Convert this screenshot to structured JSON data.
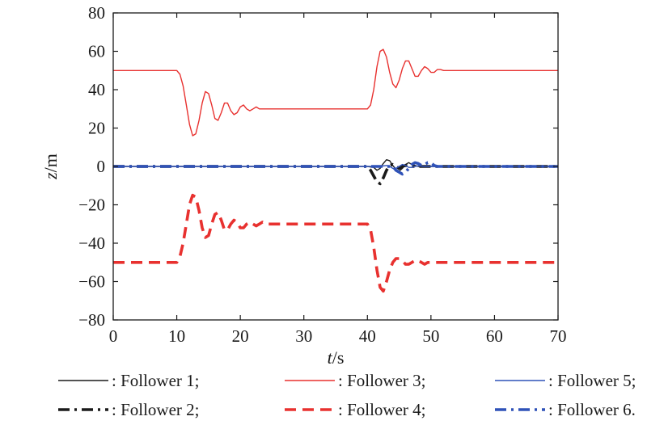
{
  "chart_data": {
    "type": "line",
    "xlabel_italic": "t",
    "xlabel_unit": "/s",
    "ylabel_italic": "z",
    "ylabel_unit": "/m",
    "xlim": [
      0,
      70
    ],
    "ylim": [
      -80,
      80
    ],
    "xticks": [
      "0",
      "10",
      "20",
      "30",
      "40",
      "50",
      "60",
      "70"
    ],
    "yticks": [
      "80",
      "60",
      "40",
      "20",
      "0",
      "−20",
      "−40",
      "−60",
      "−80"
    ],
    "xtick_values": [
      0,
      10,
      20,
      30,
      40,
      50,
      60,
      70
    ],
    "ytick_values": [
      80,
      60,
      40,
      20,
      0,
      -20,
      -40,
      -60,
      -80
    ],
    "grid": false,
    "legend_position": "bottom",
    "series": [
      {
        "name": ": Follower 1;",
        "color": "#1a1a1a",
        "dash": "solid",
        "x": [
          0,
          40,
          41,
          41.5,
          42,
          42.5,
          43,
          43.5,
          44,
          44.5,
          45,
          45.5,
          46,
          46.5,
          47,
          48,
          49,
          70
        ],
        "y": [
          0,
          0,
          -0.5,
          -2,
          -1,
          1.5,
          3.5,
          3,
          0.5,
          -1.5,
          -2.5,
          -1,
          1,
          2,
          1,
          0,
          0,
          0
        ]
      },
      {
        "name": ": Follower 2;",
        "color": "#1a1a1a",
        "dash": "dashdot",
        "x": [
          0,
          40,
          40.5,
          41,
          41.5,
          42,
          42.5,
          43,
          43.5,
          44,
          44.5,
          45,
          45.5,
          46,
          47,
          48,
          70
        ],
        "y": [
          0,
          0,
          -2,
          -5,
          -8,
          -9,
          -6,
          -2,
          0.5,
          1,
          0,
          -1,
          0,
          0.5,
          0,
          0,
          0
        ]
      },
      {
        "name": ": Follower 3;",
        "color": "#e8312f",
        "dash": "solid",
        "x": [
          0,
          10,
          10.5,
          11,
          11.5,
          12,
          12.5,
          13,
          13.5,
          14,
          14.5,
          15,
          15.5,
          16,
          16.5,
          17,
          17.5,
          18,
          18.5,
          19,
          19.5,
          20,
          20.5,
          21,
          21.5,
          22,
          22.5,
          23,
          24,
          25,
          40,
          40.5,
          41,
          41.5,
          42,
          42.5,
          43,
          43.5,
          44,
          44.5,
          45,
          45.5,
          46,
          46.5,
          47,
          47.5,
          48,
          48.5,
          49,
          49.5,
          50,
          50.5,
          51,
          51.5,
          52,
          53,
          55,
          70
        ],
        "y": [
          50,
          50,
          48,
          42,
          32,
          22,
          16,
          17,
          24,
          33,
          39,
          38,
          32,
          25,
          24,
          28,
          33,
          33,
          29,
          27,
          28,
          31,
          32,
          30,
          29,
          30,
          31,
          30,
          30,
          30,
          30,
          32,
          40,
          52,
          60,
          61,
          57,
          49,
          43,
          41,
          45,
          51,
          55,
          55,
          51,
          47,
          47,
          50,
          52,
          51,
          49,
          49,
          50.5,
          50.5,
          50,
          50,
          50,
          50
        ]
      },
      {
        "name": ": Follower 4;",
        "color": "#e8312f",
        "dash": "dash",
        "x": [
          0,
          10,
          10.5,
          11,
          11.5,
          12,
          12.5,
          13,
          13.5,
          14,
          14.5,
          15,
          15.5,
          16,
          16.5,
          17,
          17.5,
          18,
          18.5,
          19,
          19.5,
          20,
          20.5,
          21,
          21.5,
          22,
          22.5,
          23,
          23.5,
          24,
          25,
          40,
          40.5,
          41,
          41.5,
          42,
          42.5,
          43,
          43.5,
          44,
          44.5,
          45,
          45.5,
          46,
          46.5,
          47,
          47.5,
          48,
          48.5,
          49,
          49.5,
          50,
          51,
          52,
          70
        ],
        "y": [
          -50,
          -50,
          -47,
          -40,
          -30,
          -20,
          -15,
          -16,
          -23,
          -32,
          -37,
          -36,
          -30,
          -25,
          -24,
          -28,
          -33,
          -33,
          -30,
          -28,
          -29,
          -32,
          -32,
          -30,
          -29,
          -30,
          -31,
          -30,
          -29,
          -30,
          -30,
          -30,
          -33,
          -42,
          -54,
          -63,
          -65,
          -60,
          -54,
          -50,
          -48,
          -48,
          -49,
          -51,
          -51,
          -50,
          -49,
          -49,
          -50,
          -51,
          -50,
          -50,
          -50,
          -50,
          -50
        ]
      },
      {
        "name": ": Follower 5;",
        "color": "#2f52b8",
        "dash": "solid",
        "x": [
          0,
          40,
          42,
          43,
          43.5,
          44,
          44.5,
          45,
          45.5,
          46,
          46.5,
          47,
          47.5,
          48,
          49,
          70
        ],
        "y": [
          0,
          0,
          0,
          0.5,
          0,
          -1,
          -1,
          0,
          1,
          0.5,
          -0.5,
          -0.5,
          0,
          0.3,
          0,
          0
        ]
      },
      {
        "name": ": Follower 6.",
        "color": "#2f52b8",
        "dash": "dashdot",
        "x": [
          0,
          44,
          44.5,
          45,
          45.5,
          46,
          46.5,
          47,
          47.5,
          48,
          48.5,
          49,
          49.5,
          50,
          50.5,
          51,
          52,
          70
        ],
        "y": [
          0,
          0,
          -2,
          -3,
          -4,
          -3,
          -1,
          1,
          2,
          1.5,
          0.5,
          1,
          2,
          2,
          0.5,
          0,
          0,
          0
        ]
      }
    ]
  }
}
